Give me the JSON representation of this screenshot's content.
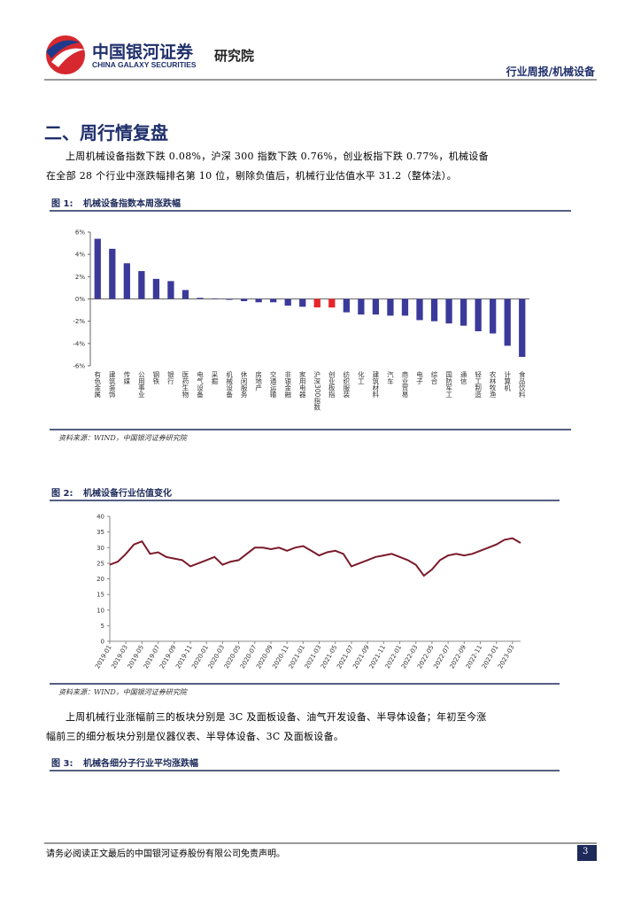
{
  "header": {
    "company_cn": "中国银河证券",
    "company_en": "CHINA GALAXY SECURITIES",
    "institute": "研究院",
    "report_type": "行业周报/机械设备"
  },
  "section_title": "二、周行情复盘",
  "paragraphs": [
    "上周机械设备指数下跌 0.08%，沪深 300 指数下跌 0.76%，创业板指下跌 0.77%，机械设备在全部 28 个行业中涨跌幅排名第 10 位，剔除负值后，机械行业估值水平 31.2（整体法）。",
    "上周机械行业涨幅前三的板块分别是 3C 及面板设备、油气开发设备、半导体设备；年初至今涨幅前三的细分板块分别是仪器仪表、半导体设备、3C 及面板设备。"
  ],
  "figures": [
    {
      "label": "图 1:",
      "caption": "机械设备指数本周涨跌幅",
      "source": "资料来源：WIND，中国银河证券研究院"
    },
    {
      "label": "图 2:",
      "caption": "机械设备行业估值变化",
      "source": "资料来源：WIND，中国银河证券研究院"
    },
    {
      "label": "图 3:",
      "caption": "机械各细分子行业平均涨跌幅"
    }
  ],
  "footer": {
    "disclaimer": "请务必阅读正文最后的中国银河证券股份有限公司免责声明。",
    "page": "3"
  },
  "chart_data": [
    {
      "type": "bar",
      "categories": [
        "有色金属",
        "建筑装饰",
        "传媒",
        "公用事业",
        "钢铁",
        "银行",
        "医药生物",
        "电气设备",
        "采掘",
        "机械设备",
        "休闲服务",
        "房地产",
        "交通运输",
        "非银金融",
        "家用电器",
        "沪深300指数",
        "创业板指",
        "纺织服装",
        "化工",
        "建筑材料",
        "汽车",
        "商业贸易",
        "电子",
        "综合",
        "国防军工",
        "通信",
        "轻工制造",
        "农林牧渔",
        "计算机",
        "食品饮料"
      ],
      "values": [
        5.4,
        4.5,
        3.2,
        2.5,
        1.8,
        1.6,
        0.8,
        0.1,
        0.05,
        -0.08,
        -0.2,
        -0.3,
        -0.3,
        -0.6,
        -0.7,
        -0.76,
        -0.77,
        -1.2,
        -1.4,
        -1.4,
        -1.5,
        -1.5,
        -1.9,
        -2.0,
        -2.2,
        -2.4,
        -2.9,
        -3.1,
        -4.2,
        -5.2
      ],
      "colors": [
        "#3b3a9a",
        "#3b3a9a",
        "#3b3a9a",
        "#3b3a9a",
        "#3b3a9a",
        "#3b3a9a",
        "#3b3a9a",
        "#3b3a9a",
        "#3b3a9a",
        "#3b3a9a",
        "#3b3a9a",
        "#3b3a9a",
        "#3b3a9a",
        "#3b3a9a",
        "#3b3a9a",
        "#e8262a",
        "#e8262a",
        "#3b3a9a",
        "#3b3a9a",
        "#3b3a9a",
        "#3b3a9a",
        "#3b3a9a",
        "#3b3a9a",
        "#3b3a9a",
        "#3b3a9a",
        "#3b3a9a",
        "#3b3a9a",
        "#3b3a9a",
        "#3b3a9a",
        "#3b3a9a"
      ],
      "ylim": [
        -6,
        6
      ],
      "yticks": [
        {
          "value": -6,
          "label": "-6%"
        },
        {
          "value": -4,
          "label": "-4%"
        },
        {
          "value": -2,
          "label": "-2%"
        },
        {
          "value": 0,
          "label": "0%"
        },
        {
          "value": 2,
          "label": "2%"
        },
        {
          "value": 4,
          "label": "4%"
        },
        {
          "value": 6,
          "label": "6%"
        }
      ]
    },
    {
      "type": "line",
      "categories": [
        "2019-01",
        null,
        "2019-03",
        null,
        "2019-05",
        null,
        "2019-07",
        null,
        "2019-09",
        null,
        "2019-11",
        null,
        "2020-01",
        null,
        "2020-03",
        null,
        "2020-05",
        null,
        "2020-07",
        null,
        "2020-09",
        null,
        "2020-11",
        null,
        "2021-01",
        null,
        "2021-03",
        null,
        "2021-05",
        null,
        "2021-07",
        null,
        "2021-09",
        null,
        "2021-11",
        null,
        "2022-01",
        null,
        "2022-03",
        null,
        "2022-05",
        null,
        "2022-07",
        null,
        "2022-09",
        null,
        "2022-11",
        null,
        "2023-01",
        null,
        "2023-03",
        null
      ],
      "values": [
        24.5,
        25.5,
        28,
        31,
        32,
        28,
        28.5,
        27,
        26.5,
        26,
        24,
        25,
        26,
        27,
        24.5,
        25.5,
        26,
        28,
        30,
        30,
        29.5,
        30,
        29,
        30,
        30.5,
        29,
        27.5,
        28.5,
        29,
        28,
        24,
        25,
        26,
        27,
        27.5,
        28,
        27,
        26,
        24.5,
        21,
        23,
        26,
        27.5,
        28,
        27.5,
        28,
        29,
        30,
        31,
        32.5,
        33,
        31.5
      ],
      "color": "#7a1a2a",
      "ylim": [
        0,
        40
      ],
      "yticks": [
        0,
        5,
        10,
        15,
        20,
        25,
        30,
        35,
        40
      ]
    }
  ]
}
